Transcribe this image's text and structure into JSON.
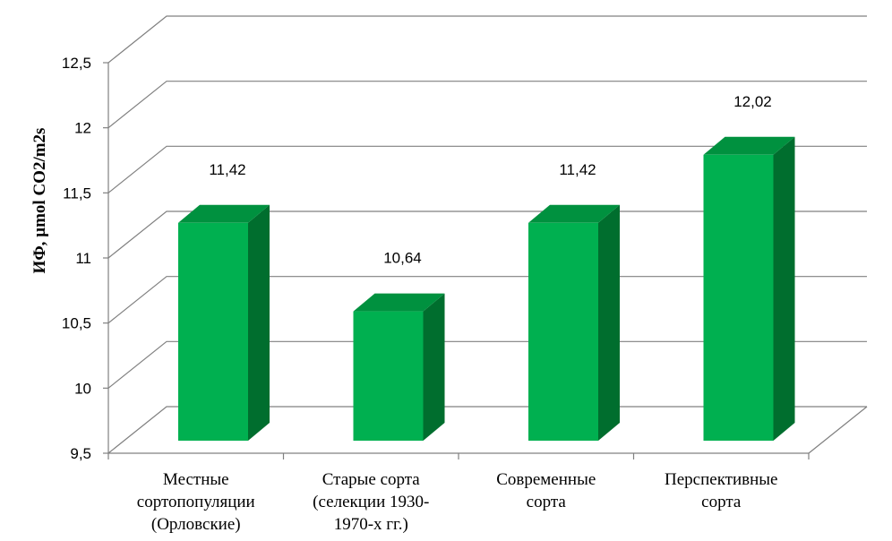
{
  "chart_data": {
    "type": "bar",
    "ylabel": "ИФ, µmol CO2/m2s",
    "categories": [
      [
        "Местные",
        "сортопопуляции",
        "(Орловские)"
      ],
      [
        "Старые сорта",
        "(селекции 1930-",
        "1970-х гг.)"
      ],
      [
        "Современные",
        "сорта"
      ],
      [
        "Перспективные",
        "сорта"
      ]
    ],
    "values": [
      11.42,
      10.64,
      11.42,
      12.02
    ],
    "data_labels": [
      "11,42",
      "10,64",
      "11,42",
      "12,02"
    ],
    "yticks": [
      "9,5",
      "10",
      "10,5",
      "11",
      "11,5",
      "12",
      "12,5"
    ],
    "ylim": [
      9.5,
      12.5
    ],
    "grid": true,
    "legend": false,
    "style": "3d-column"
  },
  "colors": {
    "bar_front": "#00b050",
    "bar_top": "#00913f",
    "bar_side": "#006e2e",
    "gridline": "#808080"
  }
}
